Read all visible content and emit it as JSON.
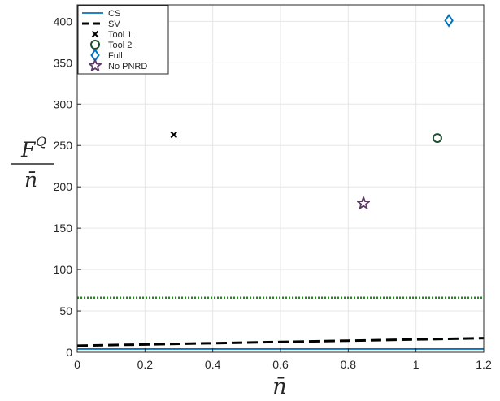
{
  "chart_data": {
    "type": "line",
    "title": "",
    "xlabel": "n̄",
    "ylabel": {
      "numerator": "F",
      "superscript": "Q",
      "denominator": "n̄"
    },
    "xlim": [
      0,
      1.2
    ],
    "ylim": [
      0,
      420
    ],
    "xticks": [
      0,
      0.2,
      0.4,
      0.6,
      0.8,
      1,
      1.2
    ],
    "xtick_labels": [
      "0",
      "0.2",
      "0.4",
      "0.6",
      "0.8",
      "1",
      "1.2"
    ],
    "yticks": [
      0,
      50,
      100,
      150,
      200,
      250,
      300,
      350,
      400
    ],
    "ytick_labels": [
      "0",
      "50",
      "100",
      "150",
      "200",
      "250",
      "300",
      "350",
      "400"
    ],
    "grid": true,
    "legend_position": "top-left",
    "series": [
      {
        "name": "CS",
        "kind": "line",
        "style": "solid",
        "color": "#0072bd",
        "x": [
          0,
          1.2
        ],
        "y": [
          4,
          4
        ]
      },
      {
        "name": "SV",
        "kind": "line",
        "style": "dashed",
        "color": "#000000",
        "x": [
          0,
          0.2,
          0.4,
          0.6,
          0.8,
          1.0,
          1.2
        ],
        "y": [
          8,
          9.5,
          11,
          12.5,
          14,
          15.5,
          17
        ]
      },
      {
        "name": "Tool 1",
        "kind": "marker",
        "marker": "x",
        "color": "#000000",
        "x": [
          0.285
        ],
        "y": [
          263
        ]
      },
      {
        "name": "Tool 2",
        "kind": "marker",
        "marker": "circle",
        "color": "#1d4b2d",
        "x": [
          1.063
        ],
        "y": [
          259
        ]
      },
      {
        "name": "Full",
        "kind": "marker",
        "marker": "diamond",
        "color": "#0072bd",
        "x": [
          1.097
        ],
        "y": [
          401
        ]
      },
      {
        "name": "No PNRD",
        "kind": "marker",
        "marker": "star",
        "color": "#5b3a66",
        "x": [
          0.845
        ],
        "y": [
          180
        ]
      },
      {
        "name": "",
        "kind": "line",
        "style": "dotted",
        "color": "#1e8c1e",
        "x": [
          0,
          1.2
        ],
        "y": [
          66,
          66
        ]
      }
    ]
  }
}
